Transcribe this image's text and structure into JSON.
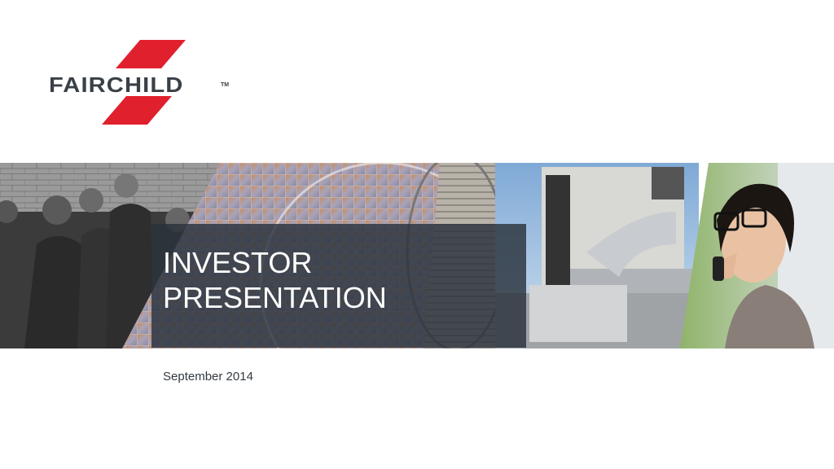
{
  "logo": {
    "wordmark": "FAIRCHILD",
    "trademark": "TM",
    "brand_color": "#e1202e"
  },
  "title": {
    "line1": "INVESTOR",
    "line2": "PRESENTATION"
  },
  "date": "September 2014",
  "banner": {
    "panels": [
      "people-photo",
      "silicon-wafer-photo",
      "industrial-fan-photo",
      "rooftop-hvac-photo",
      "woman-on-phone-photo"
    ]
  }
}
